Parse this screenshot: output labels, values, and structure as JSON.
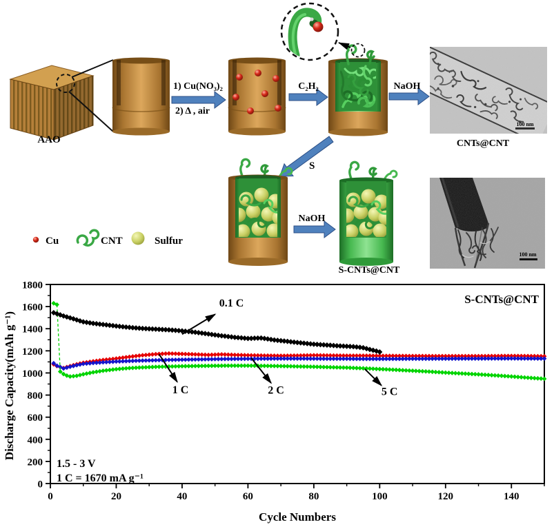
{
  "schematic": {
    "aao_label": "AAO",
    "arrows": {
      "step1_line1": "1) Cu(NO₃)₂",
      "step1_line2": "2) Δ , air",
      "step2_label": "C₂H₂",
      "step3_label": "NaOH",
      "s_label": "S",
      "step5_label": "NaOH"
    },
    "captions": {
      "tem1": "CNTs@CNT",
      "product": "S-CNTs@CNT"
    },
    "scalebars": {
      "tem1": "100 nm",
      "tem2": "100 nm"
    },
    "legend": [
      {
        "icon": "cu-sphere-icon",
        "label": "Cu"
      },
      {
        "icon": "cnt-curl-icon",
        "label": "CNT"
      },
      {
        "icon": "sulfur-sphere-icon",
        "label": "Sulfur"
      }
    ],
    "colors": {
      "alumina_brown": "#bc853c",
      "cnt_green": "#3aa845",
      "sulfur_yellow": "#c9d064",
      "copper_red": "#d42818",
      "arrow_blue": "#4f81bd"
    }
  },
  "chart_data": {
    "type": "scatter-line",
    "title": "S-CNTs@CNT",
    "xlabel": "Cycle Numbers",
    "ylabel": "Discharge Capacity(mAh g⁻¹)",
    "notes": [
      "1.5 - 3 V",
      "1 C = 1670 mA g⁻¹"
    ],
    "xlim": [
      0,
      150
    ],
    "ylim": [
      0,
      1800
    ],
    "xticks": [
      0,
      20,
      40,
      60,
      80,
      100,
      120,
      140
    ],
    "yticks": [
      0,
      200,
      400,
      600,
      800,
      1000,
      1200,
      1400,
      1600,
      1800
    ],
    "xtick_minor_step": 10,
    "ytick_minor_step": 100,
    "grid": false,
    "legend_position": "none",
    "annotations": [
      {
        "text": "0.1 C",
        "text_xy": [
          55,
          1600
        ],
        "arrow_from": [
          40,
          1350
        ],
        "arrow_to": [
          50,
          1530
        ]
      },
      {
        "text": "1 C",
        "text_xy": [
          39.5,
          815
        ],
        "arrow_from": [
          33,
          1170
        ],
        "arrow_to": [
          38.5,
          920
        ]
      },
      {
        "text": "2 C",
        "text_xy": [
          68.5,
          812
        ],
        "arrow_from": [
          61,
          1135
        ],
        "arrow_to": [
          67,
          910
        ]
      },
      {
        "text": "5 C",
        "text_xy": [
          103,
          800
        ],
        "arrow_from": [
          95.5,
          1035
        ],
        "arrow_to": [
          100.5,
          888
        ]
      }
    ],
    "series": [
      {
        "name": "1 C",
        "color": "#e60000",
        "marker": "diamond",
        "marker_size": 3.4,
        "points": [
          [
            1,
            1078
          ],
          [
            2,
            1062
          ],
          [
            4,
            1045
          ],
          [
            6,
            1062
          ],
          [
            8,
            1078
          ],
          [
            10,
            1092
          ],
          [
            13,
            1105
          ],
          [
            16,
            1117
          ],
          [
            20,
            1130
          ],
          [
            24,
            1146
          ],
          [
            28,
            1160
          ],
          [
            32,
            1170
          ],
          [
            36,
            1176
          ],
          [
            40,
            1172
          ],
          [
            44,
            1168
          ],
          [
            48,
            1163
          ],
          [
            52,
            1168
          ],
          [
            56,
            1163
          ],
          [
            60,
            1160
          ],
          [
            65,
            1157
          ],
          [
            70,
            1155
          ],
          [
            75,
            1157
          ],
          [
            80,
            1160
          ],
          [
            85,
            1158
          ],
          [
            90,
            1156
          ],
          [
            95,
            1156
          ],
          [
            100,
            1155
          ],
          [
            110,
            1153
          ],
          [
            120,
            1152
          ],
          [
            130,
            1152
          ],
          [
            140,
            1154
          ],
          [
            150,
            1151
          ]
        ]
      },
      {
        "name": "2 C",
        "color": "#1414cc",
        "marker": "diamond",
        "marker_size": 3.4,
        "points": [
          [
            1,
            1088
          ],
          [
            2,
            1066
          ],
          [
            4,
            1040
          ],
          [
            6,
            1056
          ],
          [
            8,
            1070
          ],
          [
            10,
            1082
          ],
          [
            13,
            1090
          ],
          [
            16,
            1096
          ],
          [
            20,
            1103
          ],
          [
            24,
            1108
          ],
          [
            28,
            1112
          ],
          [
            32,
            1115
          ],
          [
            36,
            1118
          ],
          [
            40,
            1120
          ],
          [
            44,
            1122
          ],
          [
            48,
            1124
          ],
          [
            52,
            1126
          ],
          [
            56,
            1127
          ],
          [
            60,
            1128
          ],
          [
            65,
            1129
          ],
          [
            70,
            1130
          ],
          [
            75,
            1130
          ],
          [
            80,
            1129
          ],
          [
            85,
            1128
          ],
          [
            90,
            1128
          ],
          [
            95,
            1127
          ],
          [
            100,
            1127
          ],
          [
            110,
            1128
          ],
          [
            120,
            1129
          ],
          [
            130,
            1130
          ],
          [
            140,
            1131
          ],
          [
            150,
            1130
          ]
        ]
      },
      {
        "name": "5 C",
        "color": "#00d400",
        "marker": "diamond",
        "marker_size": 3.4,
        "break_after": 2,
        "points": [
          [
            1,
            1630
          ],
          [
            2,
            1618
          ],
          [
            3,
            1012
          ],
          [
            4,
            990
          ],
          [
            5,
            976
          ],
          [
            6,
            968
          ],
          [
            8,
            974
          ],
          [
            10,
            988
          ],
          [
            13,
            1006
          ],
          [
            16,
            1020
          ],
          [
            20,
            1034
          ],
          [
            24,
            1044
          ],
          [
            28,
            1050
          ],
          [
            32,
            1055
          ],
          [
            36,
            1058
          ],
          [
            40,
            1061
          ],
          [
            45,
            1063
          ],
          [
            50,
            1065
          ],
          [
            55,
            1066
          ],
          [
            60,
            1066
          ],
          [
            65,
            1064
          ],
          [
            70,
            1062
          ],
          [
            75,
            1059
          ],
          [
            80,
            1056
          ],
          [
            85,
            1052
          ],
          [
            90,
            1048
          ],
          [
            95,
            1042
          ],
          [
            100,
            1035
          ],
          [
            105,
            1028
          ],
          [
            110,
            1020
          ],
          [
            115,
            1012
          ],
          [
            120,
            1003
          ],
          [
            125,
            995
          ],
          [
            130,
            987
          ],
          [
            135,
            978
          ],
          [
            140,
            968
          ],
          [
            145,
            957
          ],
          [
            150,
            947
          ]
        ]
      },
      {
        "name": "0.1 C",
        "color": "#000000",
        "marker": "diamond",
        "marker_size": 4,
        "points": [
          [
            1,
            1545
          ],
          [
            2,
            1535
          ],
          [
            4,
            1515
          ],
          [
            6,
            1498
          ],
          [
            8,
            1480
          ],
          [
            10,
            1462
          ],
          [
            13,
            1448
          ],
          [
            16,
            1438
          ],
          [
            20,
            1424
          ],
          [
            24,
            1412
          ],
          [
            28,
            1402
          ],
          [
            32,
            1396
          ],
          [
            36,
            1390
          ],
          [
            40,
            1380
          ],
          [
            44,
            1368
          ],
          [
            48,
            1352
          ],
          [
            52,
            1336
          ],
          [
            56,
            1322
          ],
          [
            60,
            1312
          ],
          [
            64,
            1316
          ],
          [
            68,
            1298
          ],
          [
            72,
            1285
          ],
          [
            76,
            1272
          ],
          [
            80,
            1260
          ],
          [
            84,
            1252
          ],
          [
            88,
            1244
          ],
          [
            92,
            1238
          ],
          [
            95,
            1228
          ],
          [
            97,
            1212
          ],
          [
            99,
            1198
          ],
          [
            100,
            1190
          ]
        ]
      }
    ]
  }
}
